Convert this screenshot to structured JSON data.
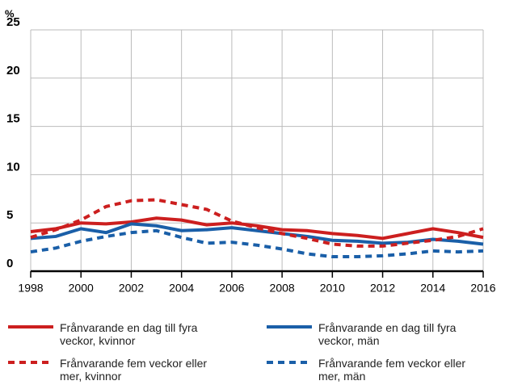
{
  "chart_data": {
    "type": "line",
    "y_label": "%",
    "x": [
      1998,
      1999,
      2000,
      2001,
      2002,
      2003,
      2004,
      2005,
      2006,
      2007,
      2008,
      2009,
      2010,
      2011,
      2012,
      2013,
      2014,
      2015,
      2016
    ],
    "series": [
      {
        "name": "Frånvarande en dag till fyra veckor, kvinnor",
        "color": "#cc1f1f",
        "dash": false,
        "values": [
          4.1,
          4.4,
          5.0,
          4.9,
          5.1,
          5.5,
          5.3,
          4.8,
          5.0,
          4.7,
          4.3,
          4.2,
          3.9,
          3.7,
          3.4,
          3.9,
          4.4,
          4.0,
          3.5
        ]
      },
      {
        "name": "Frånvarande en dag till fyra veckor, män",
        "color": "#1a5fa8",
        "dash": false,
        "values": [
          3.4,
          3.6,
          4.4,
          4.0,
          4.9,
          4.7,
          4.2,
          4.3,
          4.5,
          4.2,
          3.9,
          3.6,
          3.2,
          3.1,
          2.9,
          3.0,
          3.3,
          3.1,
          2.8
        ]
      },
      {
        "name": "Frånvarande fem veckor eller mer, kvinnor",
        "color": "#cc1f1f",
        "dash": true,
        "values": [
          3.5,
          4.3,
          5.3,
          6.7,
          7.3,
          7.4,
          6.9,
          6.4,
          5.2,
          4.5,
          3.9,
          3.4,
          2.8,
          2.6,
          2.6,
          2.9,
          3.2,
          3.6,
          4.4
        ]
      },
      {
        "name": "Frånvarande fem veckor eller mer, män",
        "color": "#1a5fa8",
        "dash": true,
        "values": [
          2.0,
          2.4,
          3.1,
          3.6,
          4.0,
          4.2,
          3.5,
          2.9,
          3.0,
          2.7,
          2.3,
          1.8,
          1.5,
          1.5,
          1.6,
          1.8,
          2.1,
          2.0,
          2.1
        ]
      }
    ],
    "xlim": [
      1998,
      2016
    ],
    "xticks": [
      1998,
      2000,
      2002,
      2004,
      2006,
      2008,
      2010,
      2012,
      2014,
      2016
    ],
    "ylim": [
      0,
      25
    ],
    "yticks": [
      0,
      5,
      10,
      15,
      20,
      25
    ],
    "grid": true
  }
}
